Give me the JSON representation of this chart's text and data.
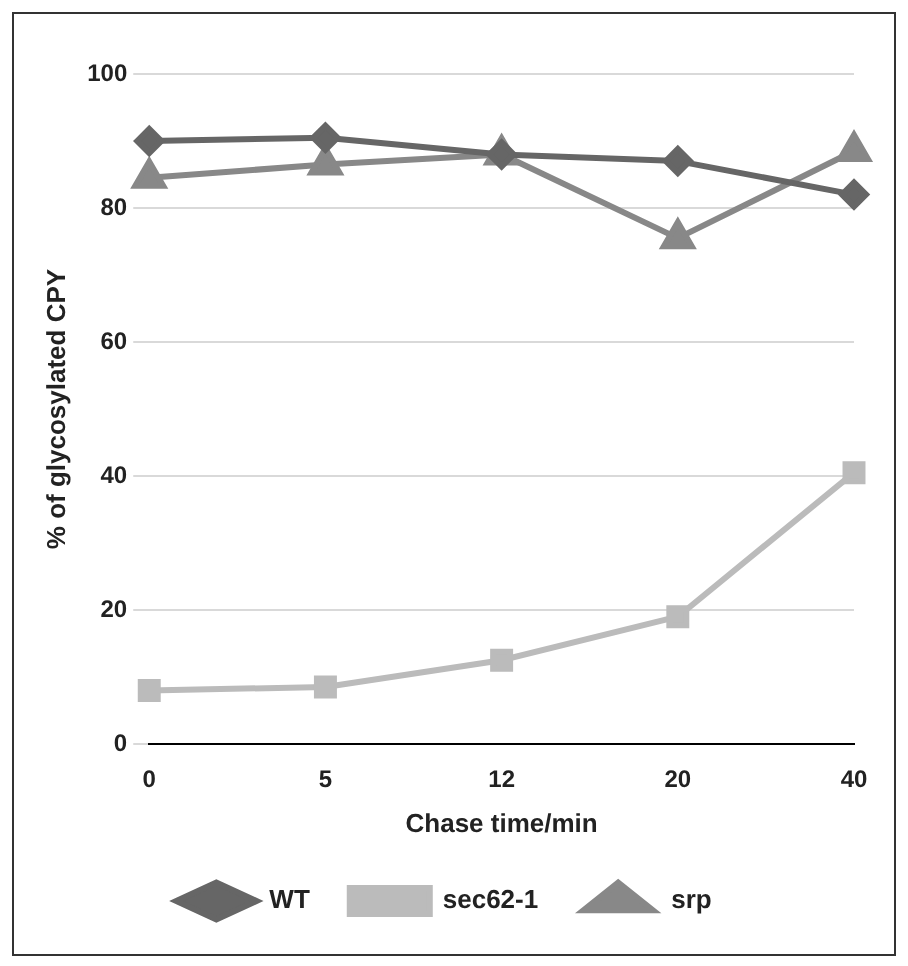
{
  "chart_data": {
    "type": "line",
    "xlabel": "Chase time/min",
    "ylabel": "% of glycosylated CPY",
    "categories": [
      "0",
      "5",
      "12",
      "20",
      "40"
    ],
    "ylim": [
      0,
      100
    ],
    "yticks": [
      0,
      20,
      40,
      60,
      80,
      100
    ],
    "grid": "y",
    "legend": "bottom",
    "series": [
      {
        "name": "WT",
        "color": "#666666",
        "marker": "diamond",
        "values": [
          90,
          90.5,
          88,
          87,
          82
        ]
      },
      {
        "name": "sec62-1",
        "color": "#bbbbbb",
        "marker": "square",
        "values": [
          8,
          8.5,
          12.5,
          19,
          40.5
        ]
      },
      {
        "name": "srp",
        "color": "#888888",
        "marker": "triangle",
        "values": [
          84.5,
          86.5,
          88,
          75.5,
          88.5
        ]
      }
    ]
  }
}
